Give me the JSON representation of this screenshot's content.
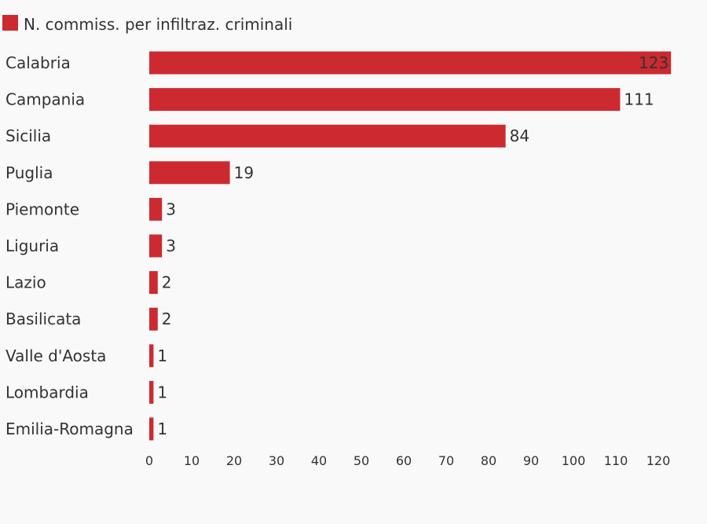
{
  "colors": {
    "bar": "#cc2a30",
    "text": "#333333",
    "background": "#f9f9f9"
  },
  "chart_data": {
    "type": "bar",
    "orientation": "horizontal",
    "series": [
      {
        "name": "N. commiss. per infiltraz. criminali",
        "values": [
          123,
          111,
          84,
          19,
          3,
          3,
          2,
          2,
          1,
          1,
          1
        ]
      }
    ],
    "categories": [
      "Calabria",
      "Campania",
      "Sicilia",
      "Puglia",
      "Piemonte",
      "Liguria",
      "Lazio",
      "Basilicata",
      "Valle d'Aosta",
      "Lombardia",
      "Emilia-Romagna"
    ],
    "xlim": [
      0,
      125
    ],
    "xticks": [
      0,
      10,
      20,
      30,
      40,
      50,
      60,
      70,
      80,
      90,
      100,
      110,
      120
    ],
    "data_labels": true,
    "legend_position": "top-left",
    "grid": false
  }
}
